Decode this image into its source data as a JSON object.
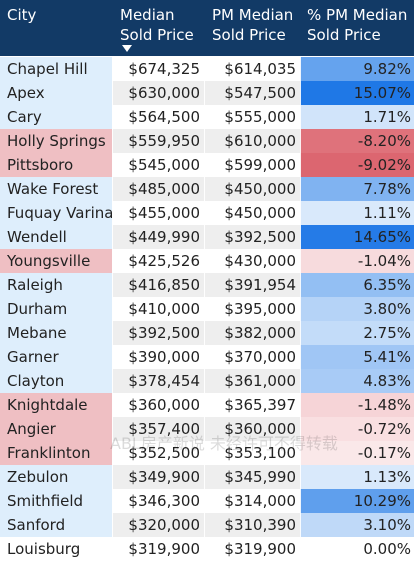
{
  "table": {
    "headers": [
      {
        "line1": "City",
        "line2": ""
      },
      {
        "line1": "Median",
        "line2": "Sold Price"
      },
      {
        "line1": "PM Median",
        "line2": "Sold Price"
      },
      {
        "line1": "% PM Median",
        "line2": "Sold Price"
      }
    ],
    "sort_icon": "sort-descending-icon",
    "rows": [
      {
        "city": "Chapel Hill",
        "median": "$674,325",
        "pm_median": "$614,035",
        "pct": "9.82%"
      },
      {
        "city": "Apex",
        "median": "$630,000",
        "pm_median": "$547,500",
        "pct": "15.07%"
      },
      {
        "city": "Cary",
        "median": "$564,500",
        "pm_median": "$555,000",
        "pct": "1.71%"
      },
      {
        "city": "Holly Springs",
        "median": "$559,950",
        "pm_median": "$610,000",
        "pct": "-8.20%"
      },
      {
        "city": "Pittsboro",
        "median": "$545,000",
        "pm_median": "$599,000",
        "pct": "-9.02%"
      },
      {
        "city": "Wake Forest",
        "median": "$485,000",
        "pm_median": "$450,000",
        "pct": "7.78%"
      },
      {
        "city": "Fuquay Varina",
        "median": "$455,000",
        "pm_median": "$450,000",
        "pct": "1.11%"
      },
      {
        "city": "Wendell",
        "median": "$449,990",
        "pm_median": "$392,500",
        "pct": "14.65%"
      },
      {
        "city": "Youngsville",
        "median": "$425,526",
        "pm_median": "$430,000",
        "pct": "-1.04%"
      },
      {
        "city": "Raleigh",
        "median": "$416,850",
        "pm_median": "$391,954",
        "pct": "6.35%"
      },
      {
        "city": "Durham",
        "median": "$410,000",
        "pm_median": "$395,000",
        "pct": "3.80%"
      },
      {
        "city": "Mebane",
        "median": "$392,500",
        "pm_median": "$382,000",
        "pct": "2.75%"
      },
      {
        "city": "Garner",
        "median": "$390,000",
        "pm_median": "$370,000",
        "pct": "5.41%"
      },
      {
        "city": "Clayton",
        "median": "$378,454",
        "pm_median": "$361,000",
        "pct": "4.83%"
      },
      {
        "city": "Knightdale",
        "median": "$360,000",
        "pm_median": "$365,397",
        "pct": "-1.48%"
      },
      {
        "city": "Angier",
        "median": "$357,400",
        "pm_median": "$360,000",
        "pct": "-0.72%"
      },
      {
        "city": "Franklinton",
        "median": "$352,500",
        "pm_median": "$353,100",
        "pct": "-0.17%"
      },
      {
        "city": "Zebulon",
        "median": "$349,900",
        "pm_median": "$345,990",
        "pct": "1.13%"
      },
      {
        "city": "Smithfield",
        "median": "$346,300",
        "pm_median": "$314,000",
        "pct": "10.29%"
      },
      {
        "city": "Sanford",
        "median": "$320,000",
        "pm_median": "$310,390",
        "pct": "3.10%"
      },
      {
        "city": "Louisburg",
        "median": "$319,900",
        "pm_median": "$319,900",
        "pct": "0.00%"
      }
    ]
  },
  "watermark": "ABL房产新说 未经许可不得转载",
  "colors": {
    "header_bg": "#123a66",
    "header_text": "#ffffff",
    "row_odd": "#ffffff",
    "row_even": "#eeeeee",
    "city_positive_bg": "#deeefc",
    "city_negative_bg": "#efbfc3",
    "positive_strong": "#1f78e6",
    "negative_strong": "#dc6670",
    "zero_bg": "#ffffff"
  }
}
